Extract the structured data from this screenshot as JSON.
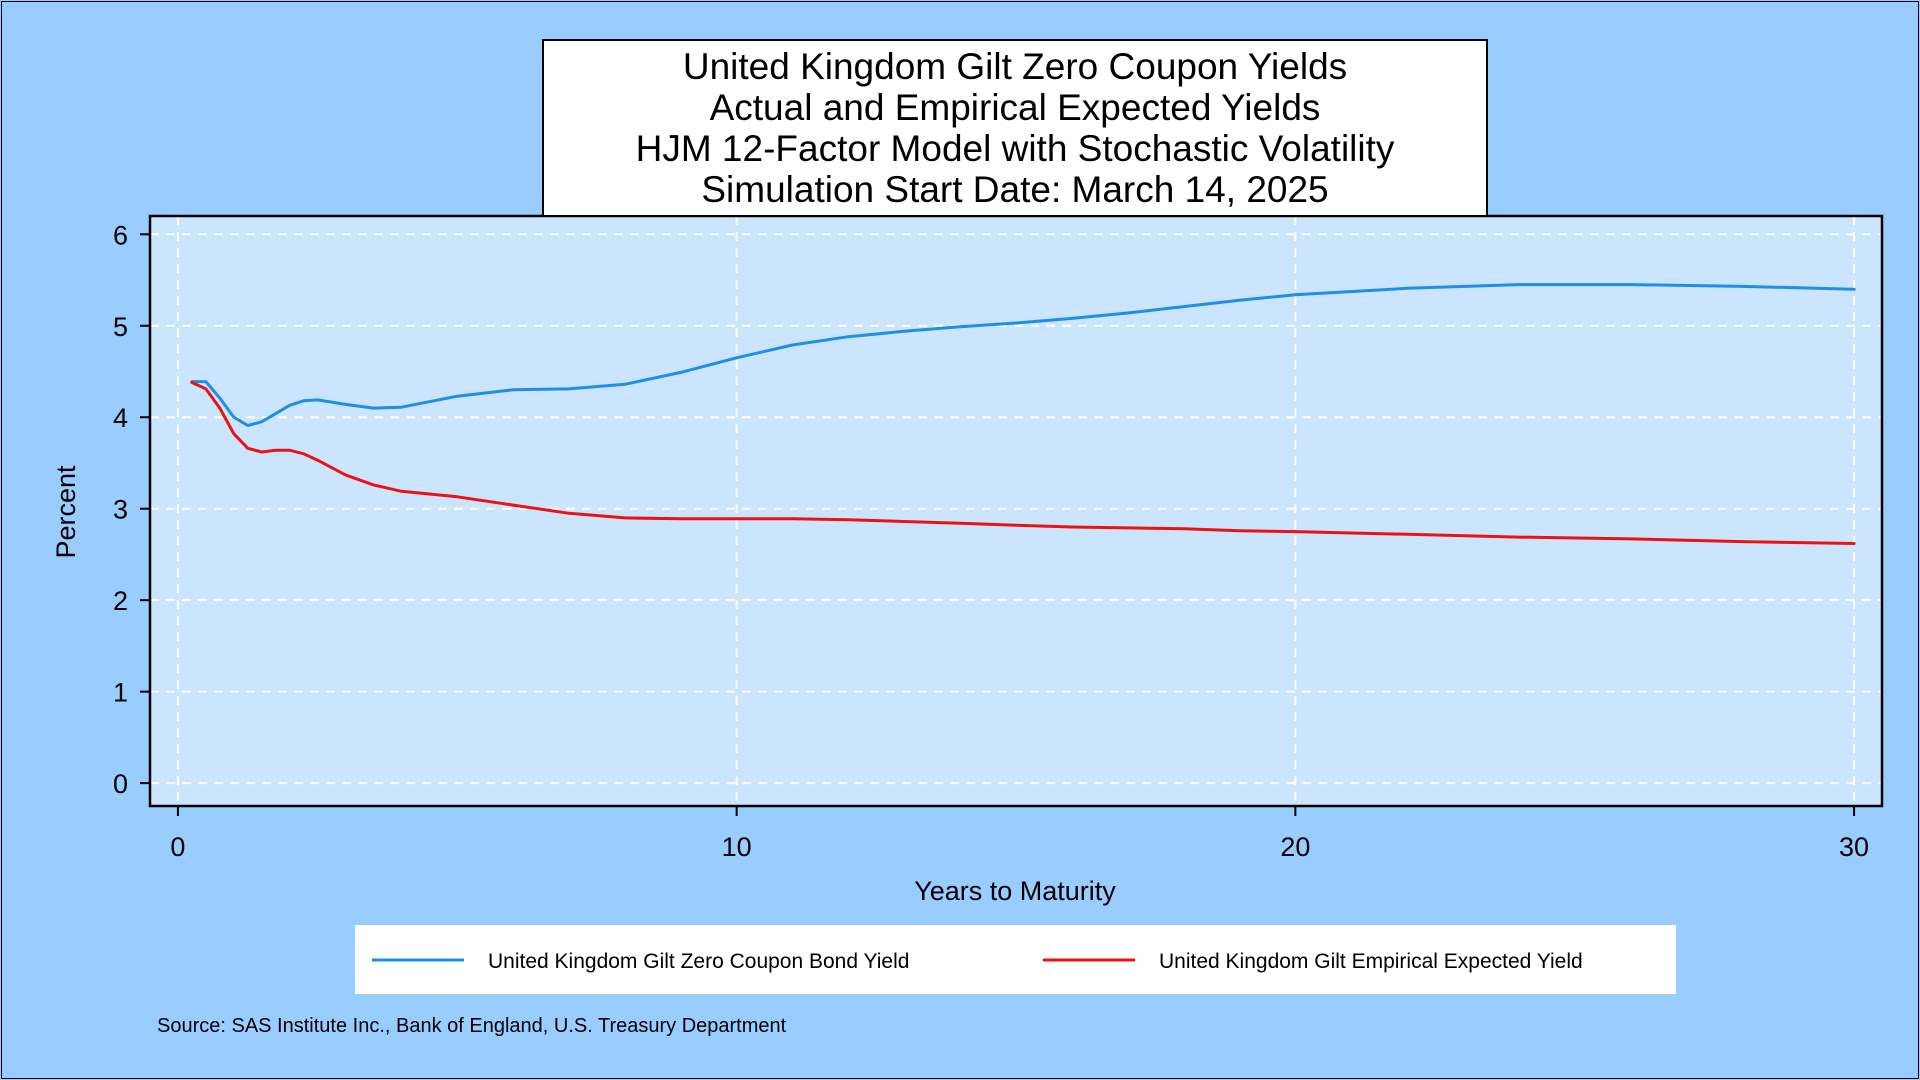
{
  "chart_data": {
    "type": "line",
    "title_lines": [
      "United Kingdom Gilt Zero Coupon Yields",
      "Actual and Empirical Expected Yields",
      "HJM 12-Factor Model with Stochastic Volatility",
      "Simulation Start Date: March 14, 2025"
    ],
    "xlabel": "Years to Maturity",
    "ylabel": "Percent",
    "xlim": [
      -0.5,
      30.5
    ],
    "ylim": [
      -0.25,
      6.2
    ],
    "xticks": [
      0,
      10,
      20,
      30
    ],
    "yticks": [
      0,
      1,
      2,
      3,
      4,
      5,
      6
    ],
    "grid": true,
    "legend_position": "bottom",
    "source": "Source: SAS Institute Inc., Bank of England, U.S. Treasury Department",
    "series": [
      {
        "name": "United Kingdom Gilt Zero Coupon Bond Yield",
        "color": "#1f8fe6",
        "x": [
          0.25,
          0.5,
          0.75,
          1.0,
          1.25,
          1.5,
          1.75,
          2.0,
          2.25,
          2.5,
          3.0,
          3.5,
          4.0,
          5.0,
          6.0,
          7.0,
          8.0,
          9.0,
          10.0,
          11.0,
          12.0,
          13.0,
          14.0,
          15.0,
          16.0,
          17.0,
          18.0,
          19.0,
          20.0,
          22.0,
          24.0,
          25.0,
          26.0,
          28.0,
          30.0
        ],
        "y": [
          4.39,
          4.39,
          4.21,
          4.0,
          3.91,
          3.95,
          4.04,
          4.13,
          4.18,
          4.19,
          4.14,
          4.1,
          4.11,
          4.23,
          4.3,
          4.31,
          4.36,
          4.49,
          4.65,
          4.79,
          4.88,
          4.94,
          4.99,
          5.03,
          5.08,
          5.14,
          5.21,
          5.28,
          5.34,
          5.41,
          5.45,
          5.45,
          5.45,
          5.43,
          5.4
        ]
      },
      {
        "name": "United Kingdom Gilt Empirical Expected Yield",
        "color": "#ee1111",
        "x": [
          0.25,
          0.5,
          0.75,
          1.0,
          1.25,
          1.5,
          1.75,
          2.0,
          2.25,
          2.5,
          3.0,
          3.5,
          4.0,
          5.0,
          6.0,
          7.0,
          8.0,
          9.0,
          10.0,
          11.0,
          12.0,
          13.0,
          14.0,
          15.0,
          16.0,
          17.0,
          18.0,
          19.0,
          20.0,
          22.0,
          24.0,
          26.0,
          28.0,
          30.0
        ],
        "y": [
          4.38,
          4.31,
          4.1,
          3.82,
          3.66,
          3.62,
          3.64,
          3.64,
          3.6,
          3.53,
          3.37,
          3.26,
          3.19,
          3.13,
          3.04,
          2.95,
          2.9,
          2.89,
          2.89,
          2.89,
          2.88,
          2.86,
          2.84,
          2.82,
          2.8,
          2.79,
          2.78,
          2.76,
          2.75,
          2.72,
          2.69,
          2.67,
          2.64,
          2.62
        ]
      }
    ]
  }
}
